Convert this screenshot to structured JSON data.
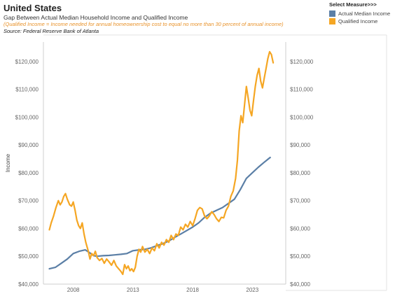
{
  "header": {
    "title": "United States",
    "subtitle": "Gap Between Actual Median Household Income and Qualified Income",
    "note": "(Qualified Income = Income needed for annual homeownership cost to equal no more than 30 percent of annual income)",
    "source": "Source: Federal Reserve Bank of Atlanta"
  },
  "legend": {
    "title": "Select Measure>>>",
    "items": [
      {
        "label": "Actual Median Income",
        "color": "#5b7fa6"
      },
      {
        "label": "Qualified Income",
        "color": "#f5a623"
      }
    ]
  },
  "chart_data": {
    "type": "line",
    "ylabel": "Income",
    "xlabel": "",
    "xlim": [
      2005.5,
      2025.8
    ],
    "ylim": [
      40000,
      127000
    ],
    "x_ticks": [
      "2008",
      "2013",
      "2018",
      "2023"
    ],
    "y_ticks": [
      "$40,000",
      "$50,000",
      "$60,000",
      "$70,000",
      "$80,000",
      "$90,000",
      "$100,000",
      "$110,000",
      "$120,000"
    ],
    "grid": false,
    "legend_position": "top-right",
    "series": [
      {
        "name": "Actual Median Income",
        "color": "#5b7fa6",
        "points": [
          [
            2006.0,
            45500
          ],
          [
            2006.5,
            46000
          ],
          [
            2007.0,
            47500
          ],
          [
            2007.5,
            49000
          ],
          [
            2008.0,
            51000
          ],
          [
            2008.5,
            51800
          ],
          [
            2009.0,
            52300
          ],
          [
            2009.3,
            51500
          ],
          [
            2009.7,
            50200
          ],
          [
            2010.0,
            50000
          ],
          [
            2010.5,
            50200
          ],
          [
            2011.0,
            50300
          ],
          [
            2011.5,
            50500
          ],
          [
            2012.0,
            50700
          ],
          [
            2012.5,
            51000
          ],
          [
            2013.0,
            52000
          ],
          [
            2013.5,
            52300
          ],
          [
            2014.0,
            52500
          ],
          [
            2014.5,
            53000
          ],
          [
            2015.0,
            53800
          ],
          [
            2015.5,
            54500
          ],
          [
            2016.0,
            55500
          ],
          [
            2016.5,
            56800
          ],
          [
            2017.0,
            58000
          ],
          [
            2017.5,
            59200
          ],
          [
            2018.0,
            60500
          ],
          [
            2018.5,
            62000
          ],
          [
            2019.0,
            64000
          ],
          [
            2019.5,
            65500
          ],
          [
            2020.0,
            66500
          ],
          [
            2020.5,
            67500
          ],
          [
            2021.0,
            69000
          ],
          [
            2021.5,
            70500
          ],
          [
            2022.0,
            74000
          ],
          [
            2022.5,
            78000
          ],
          [
            2023.0,
            80000
          ],
          [
            2023.5,
            82000
          ],
          [
            2024.0,
            83800
          ],
          [
            2024.5,
            85500
          ]
        ]
      },
      {
        "name": "Qualified Income",
        "color": "#f5a623",
        "points": [
          [
            2006.0,
            59500
          ],
          [
            2006.15,
            62000
          ],
          [
            2006.35,
            64500
          ],
          [
            2006.55,
            67500
          ],
          [
            2006.75,
            70000
          ],
          [
            2006.9,
            68500
          ],
          [
            2007.05,
            69500
          ],
          [
            2007.2,
            71500
          ],
          [
            2007.35,
            72500
          ],
          [
            2007.5,
            70500
          ],
          [
            2007.7,
            68500
          ],
          [
            2007.85,
            68000
          ],
          [
            2008.0,
            69500
          ],
          [
            2008.15,
            66500
          ],
          [
            2008.3,
            63000
          ],
          [
            2008.45,
            61000
          ],
          [
            2008.6,
            60000
          ],
          [
            2008.75,
            62000
          ],
          [
            2008.9,
            58000
          ],
          [
            2009.05,
            55000
          ],
          [
            2009.25,
            52000
          ],
          [
            2009.4,
            49000
          ],
          [
            2009.55,
            51000
          ],
          [
            2009.7,
            50200
          ],
          [
            2009.85,
            51800
          ],
          [
            2010.0,
            49500
          ],
          [
            2010.2,
            48500
          ],
          [
            2010.4,
            49200
          ],
          [
            2010.6,
            47500
          ],
          [
            2010.8,
            49000
          ],
          [
            2011.0,
            48000
          ],
          [
            2011.2,
            46800
          ],
          [
            2011.4,
            48500
          ],
          [
            2011.6,
            46500
          ],
          [
            2011.8,
            45500
          ],
          [
            2012.0,
            44500
          ],
          [
            2012.15,
            43500
          ],
          [
            2012.3,
            47000
          ],
          [
            2012.45,
            45500
          ],
          [
            2012.6,
            46500
          ],
          [
            2012.75,
            44800
          ],
          [
            2012.9,
            45500
          ],
          [
            2013.05,
            44500
          ],
          [
            2013.2,
            46000
          ],
          [
            2013.35,
            50000
          ],
          [
            2013.5,
            52500
          ],
          [
            2013.65,
            51500
          ],
          [
            2013.8,
            53500
          ],
          [
            2014.0,
            51500
          ],
          [
            2014.2,
            52500
          ],
          [
            2014.4,
            51000
          ],
          [
            2014.6,
            53000
          ],
          [
            2014.8,
            52000
          ],
          [
            2015.0,
            54500
          ],
          [
            2015.2,
            53000
          ],
          [
            2015.4,
            55000
          ],
          [
            2015.6,
            54000
          ],
          [
            2015.8,
            56000
          ],
          [
            2016.0,
            55000
          ],
          [
            2016.2,
            57500
          ],
          [
            2016.4,
            56000
          ],
          [
            2016.6,
            58000
          ],
          [
            2016.8,
            57500
          ],
          [
            2017.0,
            60500
          ],
          [
            2017.2,
            59500
          ],
          [
            2017.4,
            61500
          ],
          [
            2017.6,
            60500
          ],
          [
            2017.8,
            62500
          ],
          [
            2018.0,
            61000
          ],
          [
            2018.2,
            63500
          ],
          [
            2018.4,
            66500
          ],
          [
            2018.6,
            67500
          ],
          [
            2018.8,
            67000
          ],
          [
            2019.0,
            64500
          ],
          [
            2019.2,
            63500
          ],
          [
            2019.4,
            64500
          ],
          [
            2019.6,
            66000
          ],
          [
            2019.8,
            65000
          ],
          [
            2020.0,
            63500
          ],
          [
            2020.2,
            62500
          ],
          [
            2020.4,
            64000
          ],
          [
            2020.6,
            63800
          ],
          [
            2020.8,
            66500
          ],
          [
            2021.0,
            68000
          ],
          [
            2021.2,
            71500
          ],
          [
            2021.4,
            73500
          ],
          [
            2021.6,
            78000
          ],
          [
            2021.75,
            84500
          ],
          [
            2021.9,
            95000
          ],
          [
            2022.05,
            100500
          ],
          [
            2022.2,
            98000
          ],
          [
            2022.35,
            104500
          ],
          [
            2022.5,
            111000
          ],
          [
            2022.65,
            107000
          ],
          [
            2022.8,
            102500
          ],
          [
            2022.95,
            100500
          ],
          [
            2023.1,
            106000
          ],
          [
            2023.25,
            111000
          ],
          [
            2023.4,
            115000
          ],
          [
            2023.55,
            117500
          ],
          [
            2023.7,
            113000
          ],
          [
            2023.85,
            110500
          ],
          [
            2024.0,
            114000
          ],
          [
            2024.15,
            117500
          ],
          [
            2024.3,
            121000
          ],
          [
            2024.45,
            123500
          ],
          [
            2024.6,
            122500
          ],
          [
            2024.75,
            119500
          ]
        ]
      }
    ]
  }
}
